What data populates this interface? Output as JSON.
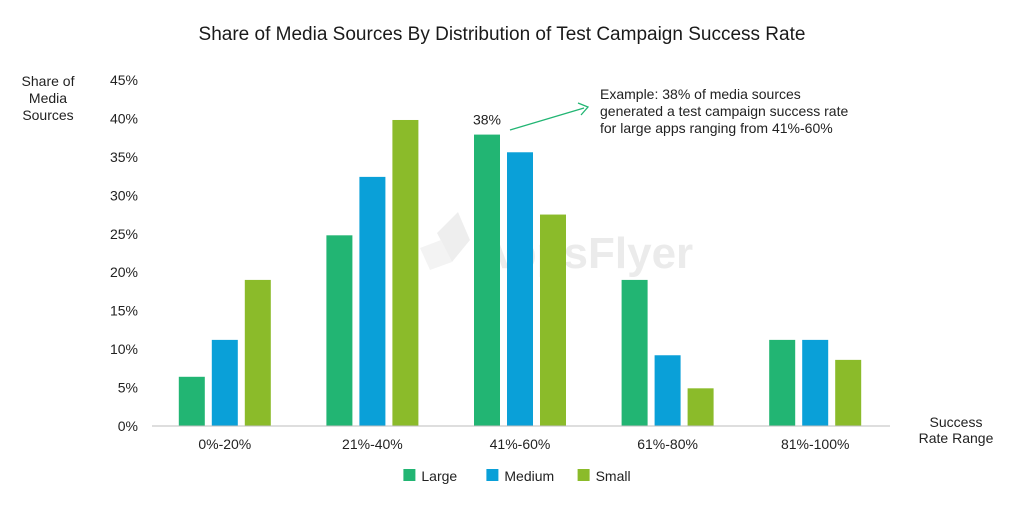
{
  "chart_data": {
    "type": "bar",
    "title": "Share of Media Sources By Distribution of Test Campaign Success Rate",
    "ylabel": [
      "Share of",
      "Media",
      "Sources"
    ],
    "xlabel": [
      "Success",
      "Rate Range"
    ],
    "categories": [
      "0%-20%",
      "21%-40%",
      "41%-60%",
      "61%-80%",
      "81%-100%"
    ],
    "ylim": [
      0,
      45
    ],
    "yticks": [
      "0%",
      "5%",
      "10%",
      "15%",
      "20%",
      "25%",
      "30%",
      "35%",
      "40%",
      "45%"
    ],
    "grid": false,
    "legend_position": "bottom",
    "series": [
      {
        "name": "Large",
        "color": "#22b573",
        "values": [
          6.4,
          24.8,
          37.9,
          19.0,
          11.2
        ]
      },
      {
        "name": "Medium",
        "color": "#0aa0d8",
        "values": [
          11.2,
          32.4,
          35.6,
          9.2,
          11.2
        ]
      },
      {
        "name": "Small",
        "color": "#8bbb2a",
        "values": [
          19.0,
          39.8,
          27.5,
          4.9,
          8.6
        ]
      }
    ],
    "data_label": {
      "text": "38%",
      "series": 0,
      "category": 2
    },
    "annotation": {
      "lines": [
        "Example: 38% of media sources",
        "generated a test campaign success rate",
        "for large apps ranging from 41%-60%"
      ],
      "arrow_color": "#22b573"
    },
    "watermark": "AppsFlyer"
  }
}
